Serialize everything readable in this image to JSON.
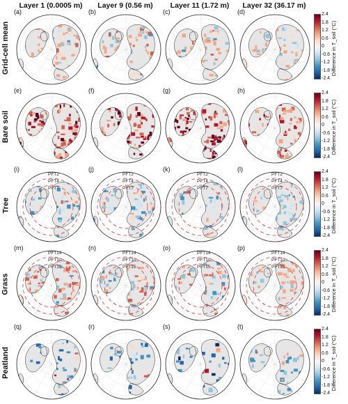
{
  "columns": [
    "Layer 1 (0.0005 m)",
    "Layer 9 (0.56 m)",
    "Layer 11 (1.72 m)",
    "Layer 32 (36.17 m)"
  ],
  "rows": [
    {
      "label": "Grid-cell mean",
      "panels": [
        "(a)",
        "(b)",
        "(c)",
        "(d)"
      ],
      "pfts": []
    },
    {
      "label": "Bare soil",
      "panels": [
        "(e)",
        "(f)",
        "(g)",
        "(h)"
      ],
      "pfts": []
    },
    {
      "label": "Tree",
      "panels": [
        "(i)",
        "(j)",
        "(k)",
        "(l)"
      ],
      "pfts": [
        "PFT2",
        "PFT4",
        "PFT7"
      ]
    },
    {
      "label": "Grass",
      "panels": [
        "(m)",
        "(n)",
        "(o)",
        "(p)"
      ],
      "pfts": [
        "PFT14",
        "PFT10",
        "PFT15"
      ]
    },
    {
      "label": "Peatland",
      "panels": [
        "(q)",
        "(r)",
        "(s)",
        "(t)"
      ],
      "pfts": []
    }
  ],
  "colorbar": {
    "ticks": [
      "2.4",
      "1.8",
      "1.2",
      "0.6",
      "0",
      "-0.6",
      "-1.2",
      "-1.8",
      "-2.4"
    ],
    "label": "Difference in T_soil (°C)"
  },
  "colors": {
    "warm": [
      "#fddbc7",
      "#f4a582",
      "#d6604d",
      "#b2182b",
      "#67001f"
    ],
    "cool": [
      "#d1e5f0",
      "#92c5de",
      "#4393c3",
      "#2166ac",
      "#053061"
    ],
    "ocean": "#ffffff",
    "land_nodata": "#e6e6e6",
    "pft_circle": "#e03030"
  },
  "row_palettes": [
    {
      "warm": 0.55,
      "cool": 0.2,
      "intensity": 0.35
    },
    {
      "warm": 0.9,
      "cool": 0.0,
      "intensity": 0.9
    },
    {
      "warm": 0.15,
      "cool": 0.6,
      "intensity": 0.45
    },
    {
      "warm": 0.5,
      "cool": 0.3,
      "intensity": 0.4
    },
    {
      "warm": 0.08,
      "cool": 0.35,
      "intensity": 0.7
    }
  ]
}
